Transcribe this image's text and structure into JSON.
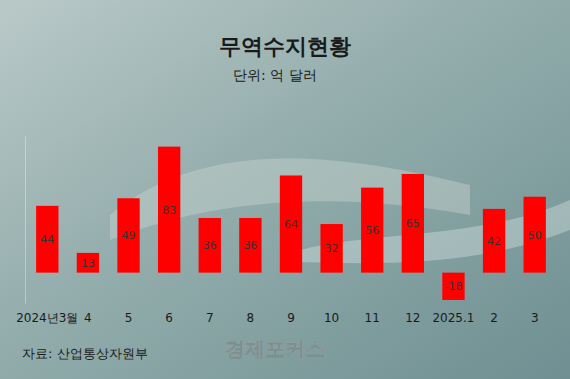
{
  "chart_data": {
    "type": "bar",
    "title": "무역수지현황",
    "subtitle": "단위: 억 달러",
    "annotations": [
      "자료: 산업통상자원부",
      "경제포커스"
    ],
    "categories": [
      "2024년3월",
      "4",
      "5",
      "6",
      "7",
      "8",
      "9",
      "10",
      "11",
      "12",
      "2025.1",
      "2",
      "3"
    ],
    "values": [
      44,
      13,
      49,
      83,
      36,
      36,
      64,
      32,
      56,
      65,
      -18,
      42,
      50
    ],
    "color": "#ff0000",
    "ylim": [
      -20,
      90
    ],
    "yticks": [],
    "grid": false,
    "data_labels": true,
    "tick_labels": "x"
  }
}
